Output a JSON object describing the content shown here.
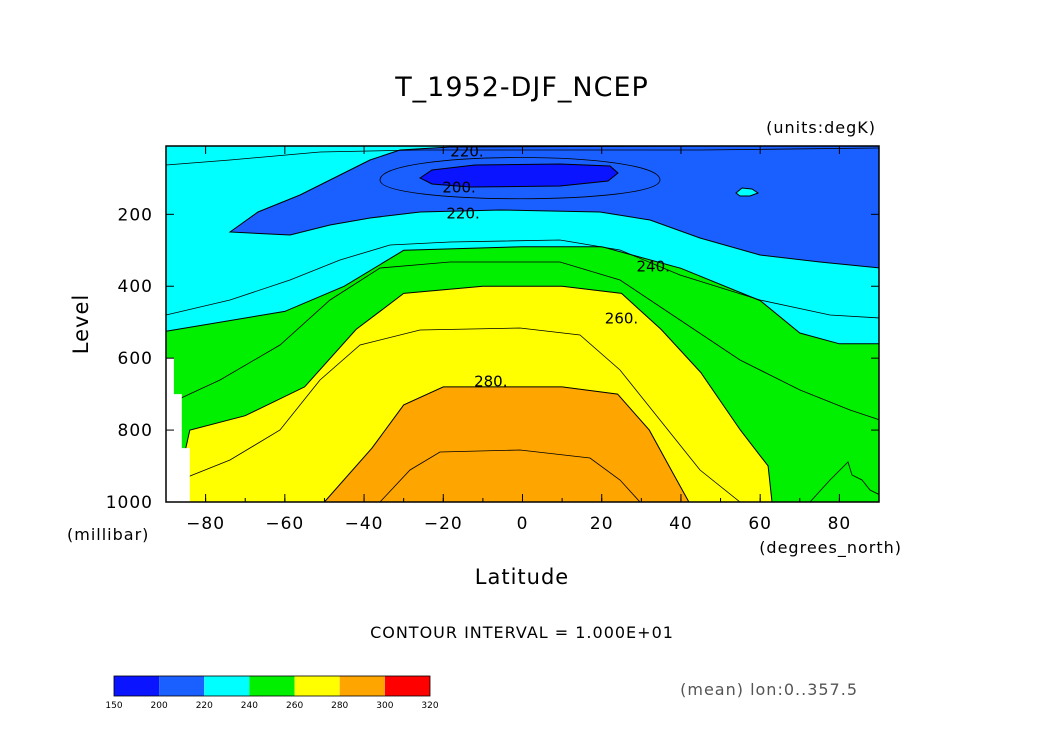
{
  "chart_data": {
    "type": "contour",
    "title": "T_1952-DJF_NCEP",
    "units_label": "(units:degK)",
    "xlabel": "Latitude",
    "ylabel": "Level",
    "x_units_label": "(degrees_north)",
    "y_units_label": "(millibar)",
    "xlim": [
      -90,
      90
    ],
    "ylim": [
      1000,
      10
    ],
    "x_ticks": [
      -80,
      -60,
      -40,
      -20,
      0,
      20,
      40,
      60,
      80
    ],
    "x_tick_labels": [
      "−80",
      "−60",
      "−40",
      "−20",
      "0",
      "20",
      "40",
      "60",
      "80"
    ],
    "y_ticks": [
      200,
      400,
      600,
      800,
      1000
    ],
    "y_tick_labels": [
      "200",
      "400",
      "600",
      "800",
      "1000"
    ],
    "contour_interval_text": "CONTOUR INTERVAL = 1.000E+01",
    "footer_text": "(mean) lon:0..357.5",
    "contour_labels": [
      {
        "text": "220.",
        "lat": -14,
        "level": 25
      },
      {
        "text": "200.",
        "lat": -16,
        "level": 125
      },
      {
        "text": "220.",
        "lat": -15,
        "level": 198
      },
      {
        "text": "240.",
        "lat": 33,
        "level": 345
      },
      {
        "text": "260.",
        "lat": 25,
        "level": 490
      },
      {
        "text": "280.",
        "lat": -8,
        "level": 665
      }
    ],
    "colorbar": {
      "ticks": [
        "150",
        "200",
        "220",
        "240",
        "260",
        "280",
        "300",
        "320"
      ],
      "colors": [
        "#0a14ff",
        "#1a5fff",
        "#00ffff",
        "#00f000",
        "#ffff00",
        "#ffa500",
        "#ff0000"
      ]
    },
    "filled_regions": [
      {
        "band": "240-260",
        "color": "#00f000",
        "points": [
          [
            -90,
            525
          ],
          [
            -60,
            470
          ],
          [
            -45,
            400
          ],
          [
            -30,
            300
          ],
          [
            0,
            290
          ],
          [
            20,
            290
          ],
          [
            40,
            350
          ],
          [
            60,
            440
          ],
          [
            70,
            530
          ],
          [
            80,
            560
          ],
          [
            90,
            560
          ],
          [
            90,
            1000
          ],
          [
            -90,
            1000
          ]
        ]
      },
      {
        "band": "260-280",
        "color": "#ffff00",
        "points": [
          [
            -90,
            980
          ],
          [
            -86,
            900
          ],
          [
            -84,
            800
          ],
          [
            -70,
            760
          ],
          [
            -55,
            680
          ],
          [
            -42,
            520
          ],
          [
            -30,
            420
          ],
          [
            -10,
            400
          ],
          [
            10,
            400
          ],
          [
            25,
            420
          ],
          [
            35,
            520
          ],
          [
            45,
            640
          ],
          [
            55,
            800
          ],
          [
            62,
            900
          ],
          [
            63,
            1000
          ],
          [
            -90,
            1000
          ]
        ]
      },
      {
        "band": "280-300",
        "color": "#ffa500",
        "points": [
          [
            -50,
            1000
          ],
          [
            -38,
            850
          ],
          [
            -30,
            730
          ],
          [
            -20,
            680
          ],
          [
            10,
            680
          ],
          [
            24,
            700
          ],
          [
            32,
            800
          ],
          [
            38,
            920
          ],
          [
            42,
            1000
          ]
        ]
      }
    ],
    "missing_data": [
      {
        "points": [
          [
            -90,
            600
          ],
          [
            -88,
            600
          ],
          [
            -88,
            700
          ],
          [
            -86,
            700
          ],
          [
            -86,
            850
          ],
          [
            -84,
            850
          ],
          [
            -84,
            1000
          ],
          [
            -90,
            1000
          ]
        ]
      }
    ]
  }
}
